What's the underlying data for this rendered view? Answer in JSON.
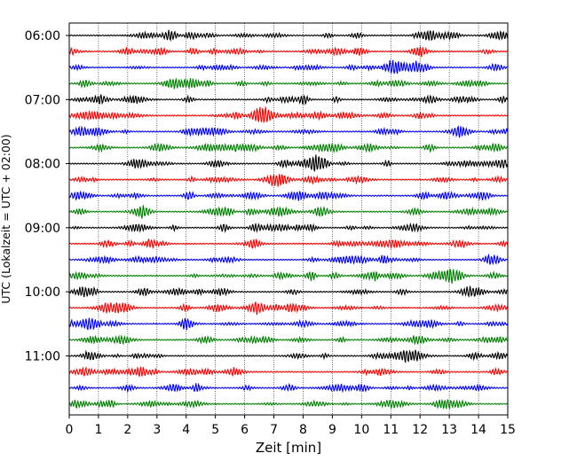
{
  "chart_data": {
    "type": "line",
    "title": "",
    "xlabel": "Zeit  [min]",
    "ylabel": "UTC (Lokalzeit = UTC + 02:00)",
    "xlim": [
      0,
      15
    ],
    "x_ticks": [
      "0",
      "1",
      "2",
      "3",
      "4",
      "5",
      "6",
      "7",
      "8",
      "9",
      "10",
      "11",
      "12",
      "13",
      "14",
      "15"
    ],
    "y_ticks": [
      "06:00",
      "07:00",
      "08:00",
      "09:00",
      "10:00",
      "11:00"
    ],
    "grid": "vertical dotted lines at each minute",
    "legend": "none",
    "trace_colors": [
      "#000000",
      "#ff0000",
      "#0000ff",
      "#008000"
    ],
    "traces_per_hour": 4,
    "trace_interval_minutes": 15,
    "trace_count": 24,
    "start_time": "06:00",
    "series_description": "24 stacked seismogram traces, each 15 minutes long, colors cycling black, red, blue, green"
  }
}
